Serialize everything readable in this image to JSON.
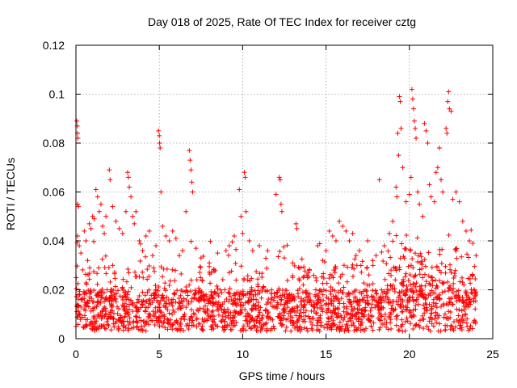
{
  "chart_data": {
    "type": "scatter",
    "title": "Day 018 of 2025, Rate Of TEC Index for receiver cztg",
    "xlabel": "GPS time / hours",
    "ylabel": "ROTI / TECUs",
    "xlim": [
      0,
      25
    ],
    "ylim": [
      0,
      0.12
    ],
    "x_ticks": [
      "0",
      "5",
      "10",
      "15",
      "20",
      "25"
    ],
    "y_ticks": [
      "0",
      "0.02",
      "0.04",
      "0.06",
      "0.08",
      "0.1",
      "0.12"
    ],
    "x_tick_values": [
      0,
      5,
      10,
      15,
      20,
      25
    ],
    "y_tick_values": [
      0,
      0.02,
      0.04,
      0.06,
      0.08,
      0.1,
      0.12
    ],
    "grid": true,
    "marker": "+",
    "marker_color": "#ff0000",
    "series": [
      {
        "name": "ROTI",
        "points": [
          [
            0.05,
            0.089
          ],
          [
            0.08,
            0.087
          ],
          [
            0.1,
            0.084
          ],
          [
            0.12,
            0.082
          ],
          [
            0.1,
            0.055
          ],
          [
            0.15,
            0.054
          ],
          [
            0.1,
            0.042
          ],
          [
            0.2,
            0.038
          ],
          [
            0.3,
            0.035
          ],
          [
            0.5,
            0.044
          ],
          [
            0.6,
            0.04
          ],
          [
            0.8,
            0.047
          ],
          [
            0.9,
            0.045
          ],
          [
            1.0,
            0.05
          ],
          [
            1.1,
            0.049
          ],
          [
            1.2,
            0.061
          ],
          [
            1.3,
            0.058
          ],
          [
            1.4,
            0.052
          ],
          [
            1.5,
            0.055
          ],
          [
            1.6,
            0.046
          ],
          [
            1.7,
            0.043
          ],
          [
            1.8,
            0.05
          ],
          [
            2.0,
            0.069
          ],
          [
            2.05,
            0.065
          ],
          [
            2.2,
            0.054
          ],
          [
            2.4,
            0.048
          ],
          [
            2.6,
            0.045
          ],
          [
            2.8,
            0.043
          ],
          [
            3.0,
            0.052
          ],
          [
            3.1,
            0.068
          ],
          [
            3.15,
            0.066
          ],
          [
            3.2,
            0.062
          ],
          [
            3.3,
            0.058
          ],
          [
            3.4,
            0.05
          ],
          [
            3.5,
            0.047
          ],
          [
            3.6,
            0.052
          ],
          [
            3.8,
            0.04
          ],
          [
            4.0,
            0.036
          ],
          [
            4.2,
            0.042
          ],
          [
            4.4,
            0.044
          ],
          [
            4.6,
            0.034
          ],
          [
            4.8,
            0.038
          ],
          [
            4.95,
            0.085
          ],
          [
            5.0,
            0.083
          ],
          [
            5.02,
            0.08
          ],
          [
            5.05,
            0.078
          ],
          [
            5.1,
            0.06
          ],
          [
            5.2,
            0.046
          ],
          [
            5.4,
            0.042
          ],
          [
            5.6,
            0.04
          ],
          [
            5.8,
            0.044
          ],
          [
            6.0,
            0.041
          ],
          [
            6.2,
            0.034
          ],
          [
            6.4,
            0.036
          ],
          [
            6.6,
            0.052
          ],
          [
            6.8,
            0.077
          ],
          [
            6.85,
            0.073
          ],
          [
            6.9,
            0.069
          ],
          [
            6.95,
            0.064
          ],
          [
            7.0,
            0.06
          ],
          [
            7.2,
            0.037
          ],
          [
            7.5,
            0.033
          ],
          [
            8.0,
            0.031
          ],
          [
            8.5,
            0.035
          ],
          [
            9.0,
            0.036
          ],
          [
            9.2,
            0.038
          ],
          [
            9.5,
            0.042
          ],
          [
            9.8,
            0.061
          ],
          [
            9.9,
            0.05
          ],
          [
            10.0,
            0.043
          ],
          [
            10.1,
            0.068
          ],
          [
            10.15,
            0.066
          ],
          [
            10.2,
            0.052
          ],
          [
            10.4,
            0.04
          ],
          [
            10.6,
            0.036
          ],
          [
            11.0,
            0.038
          ],
          [
            11.5,
            0.036
          ],
          [
            12.0,
            0.059
          ],
          [
            12.2,
            0.066
          ],
          [
            12.25,
            0.065
          ],
          [
            12.3,
            0.055
          ],
          [
            12.35,
            0.052
          ],
          [
            12.5,
            0.033
          ],
          [
            13.0,
            0.031
          ],
          [
            13.2,
            0.047
          ],
          [
            13.25,
            0.045
          ],
          [
            13.5,
            0.029
          ],
          [
            14.0,
            0.028
          ],
          [
            14.5,
            0.038
          ],
          [
            14.8,
            0.032
          ],
          [
            15.0,
            0.036
          ],
          [
            15.2,
            0.044
          ],
          [
            15.4,
            0.042
          ],
          [
            15.6,
            0.04
          ],
          [
            15.8,
            0.048
          ],
          [
            16.0,
            0.046
          ],
          [
            16.2,
            0.044
          ],
          [
            16.4,
            0.04
          ],
          [
            16.6,
            0.043
          ],
          [
            16.8,
            0.034
          ],
          [
            17.0,
            0.036
          ],
          [
            17.5,
            0.04
          ],
          [
            17.8,
            0.032
          ],
          [
            18.0,
            0.034
          ],
          [
            18.2,
            0.065
          ],
          [
            18.5,
            0.038
          ],
          [
            18.8,
            0.043
          ],
          [
            19.0,
            0.048
          ],
          [
            19.2,
            0.062
          ],
          [
            19.25,
            0.058
          ],
          [
            19.3,
            0.084
          ],
          [
            19.35,
            0.075
          ],
          [
            19.4,
            0.099
          ],
          [
            19.45,
            0.097
          ],
          [
            19.5,
            0.086
          ],
          [
            19.6,
            0.07
          ],
          [
            19.8,
            0.056
          ],
          [
            20.0,
            0.059
          ],
          [
            20.1,
            0.066
          ],
          [
            20.15,
            0.102
          ],
          [
            20.2,
            0.098
          ],
          [
            20.25,
            0.094
          ],
          [
            20.3,
            0.089
          ],
          [
            20.35,
            0.086
          ],
          [
            20.4,
            0.082
          ],
          [
            20.5,
            0.06
          ],
          [
            20.6,
            0.055
          ],
          [
            20.8,
            0.05
          ],
          [
            20.9,
            0.088
          ],
          [
            21.0,
            0.085
          ],
          [
            21.1,
            0.08
          ],
          [
            21.2,
            0.063
          ],
          [
            21.3,
            0.058
          ],
          [
            21.5,
            0.056
          ],
          [
            21.6,
            0.068
          ],
          [
            21.7,
            0.07
          ],
          [
            21.8,
            0.078
          ],
          [
            21.9,
            0.065
          ],
          [
            22.0,
            0.06
          ],
          [
            22.2,
            0.086
          ],
          [
            22.25,
            0.084
          ],
          [
            22.3,
            0.097
          ],
          [
            22.35,
            0.101
          ],
          [
            22.4,
            0.094
          ],
          [
            22.5,
            0.093
          ],
          [
            22.6,
            0.057
          ],
          [
            22.8,
            0.06
          ],
          [
            23.0,
            0.056
          ],
          [
            23.2,
            0.048
          ],
          [
            23.4,
            0.044
          ],
          [
            23.6,
            0.04
          ],
          [
            23.8,
            0.039
          ],
          [
            24.0,
            0.034
          ]
        ]
      }
    ],
    "dense_band": {
      "min": 0.003,
      "typical_max": 0.02,
      "note": "dense background of points 0.003-0.02 across 0-24 h"
    }
  }
}
